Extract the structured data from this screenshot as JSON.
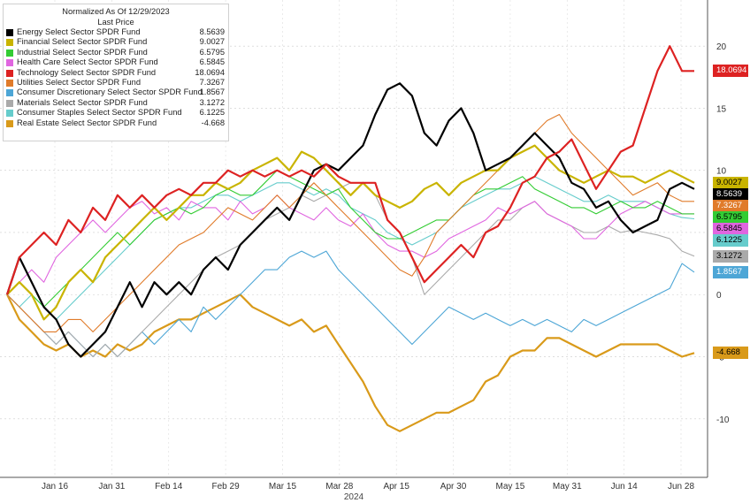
{
  "legend": {
    "title": "Normalized As Of 12/29/2023",
    "subtitle": "Last Price"
  },
  "chart_data": {
    "type": "line",
    "x_start": "2024-01-02",
    "x_end": "2024-06-28",
    "x_tick_labels": [
      "Jan 16",
      "Jan 31",
      "Feb 14",
      "Feb 29",
      "Mar 15",
      "Mar 28",
      "Apr 15",
      "Apr 30",
      "May 15",
      "May 31",
      "Jun 14",
      "Jun 28"
    ],
    "x_year_label": "2024",
    "y_tick_labels": [
      "20",
      "15",
      "10",
      "5",
      "0",
      "-5",
      "-10"
    ],
    "ylim": [
      -14,
      23
    ],
    "grid": true,
    "series": [
      {
        "name": "Energy Select Sector SPDR Fund",
        "last": "8.5639",
        "color": "#000000",
        "values": [
          0,
          3,
          1,
          -1,
          -2,
          -4,
          -5,
          -4,
          -3,
          -1,
          1,
          -1,
          1,
          0,
          1,
          0,
          2,
          3,
          2,
          4,
          5,
          6,
          7,
          6,
          8,
          10,
          10.5,
          10,
          11,
          12,
          14.5,
          16.5,
          17,
          16,
          13,
          12,
          14,
          15,
          13,
          10,
          10.5,
          11,
          12,
          13,
          12,
          11,
          9,
          8.5,
          7,
          7.5,
          6,
          5,
          5.5,
          6,
          8.5,
          9,
          8.5
        ]
      },
      {
        "name": "Financial Select Sector SPDR Fund",
        "last": "9.0027",
        "color": "#c9b400",
        "values": [
          0,
          1,
          0,
          -2,
          -1,
          1,
          2,
          1,
          3,
          4,
          5,
          6,
          7,
          6,
          7,
          8,
          8,
          9,
          8.5,
          9,
          10,
          10.5,
          11,
          10,
          11.5,
          11,
          10,
          9,
          8,
          9,
          8,
          7.5,
          7,
          7.5,
          8.5,
          9,
          8,
          9,
          9.5,
          10,
          10,
          11,
          11.5,
          12,
          11,
          10,
          9.5,
          9,
          9.5,
          10,
          9.5,
          9.5,
          9,
          9.5,
          10,
          9.5,
          9
        ]
      },
      {
        "name": "Industrial Select Sector SPDR Fund",
        "last": "6.5795",
        "color": "#33cc33",
        "values": [
          0,
          1,
          0,
          -1,
          0,
          1,
          2,
          3,
          4,
          5,
          4,
          5,
          6,
          6.5,
          7,
          6.5,
          7,
          8,
          8.5,
          8,
          8,
          9,
          10,
          9.5,
          9,
          8.5,
          8,
          8.5,
          7,
          6,
          5,
          4.5,
          4.5,
          5,
          5.5,
          6,
          6,
          7,
          8,
          8.5,
          8.5,
          9,
          9.5,
          8.5,
          8,
          7.5,
          7,
          7,
          6.5,
          7,
          7.5,
          7,
          7,
          7.5,
          7,
          6.5,
          6.5
        ]
      },
      {
        "name": "Health Care Select Sector SPDR Fund",
        "last": "6.5845",
        "color": "#e066e0",
        "values": [
          0,
          1,
          2,
          1,
          3,
          4,
          5,
          6,
          5,
          6,
          7,
          7.5,
          6.5,
          7,
          6,
          7.5,
          7,
          7,
          6,
          7.5,
          6.5,
          7,
          8,
          7,
          6.5,
          6,
          7,
          6,
          5.5,
          6.5,
          5,
          4,
          3.5,
          3.5,
          3,
          3.5,
          4.5,
          5,
          5.5,
          6,
          7,
          6.5,
          7,
          7.5,
          6.5,
          6,
          5.5,
          4.5,
          4.5,
          5.5,
          6.5,
          7,
          7.5,
          7,
          6.5,
          6.5,
          6.5
        ]
      },
      {
        "name": "Technology Select Sector SPDR Fund",
        "last": "18.0694",
        "color": "#dd2222",
        "values": [
          0,
          3,
          4,
          5,
          4,
          6,
          5,
          7,
          6,
          8,
          7,
          8,
          7,
          8,
          8.5,
          8,
          9,
          9,
          10,
          9.5,
          10,
          9.5,
          10,
          9.5,
          10,
          9.5,
          10.5,
          9.5,
          9,
          9,
          9,
          6,
          5,
          3,
          1,
          2,
          3,
          4,
          3,
          5,
          5.5,
          7,
          9,
          9.5,
          11,
          11.5,
          12.5,
          10.5,
          8.5,
          10,
          11.5,
          12,
          15,
          18,
          20,
          18,
          18
        ]
      },
      {
        "name": "Utilities Select Sector SPDR Fund",
        "last": "7.3267",
        "color": "#e07b2a",
        "values": [
          0,
          -1,
          -2,
          -3,
          -3,
          -2,
          -2,
          -3,
          -2,
          -1,
          0,
          1,
          2,
          3,
          4,
          4.5,
          5,
          6,
          7,
          6.5,
          6,
          7,
          8,
          7,
          8,
          9,
          8,
          7,
          6,
          5,
          4,
          3,
          2,
          1.5,
          3,
          5,
          6,
          7,
          8,
          9,
          10,
          11,
          12,
          13,
          14,
          14.5,
          13,
          12,
          11,
          10,
          9,
          8,
          8.5,
          9,
          8,
          7.5,
          7.5
        ]
      },
      {
        "name": "Consumer Discretionary Select Sector SPDR Fund",
        "last": "1.8567",
        "color": "#4da6d6",
        "values": [
          0,
          -1,
          -2,
          -3,
          -4,
          -3,
          -4,
          -5,
          -4,
          -5,
          -4,
          -3,
          -4,
          -3,
          -2,
          -3,
          -1,
          -2,
          -1,
          0,
          1,
          2,
          2,
          3,
          3.5,
          3,
          3.5,
          2,
          1,
          0,
          -1,
          -2,
          -3,
          -4,
          -3,
          -2,
          -1,
          -1.5,
          -2,
          -1.5,
          -2,
          -2.5,
          -2,
          -2.5,
          -2,
          -2.5,
          -3,
          -2,
          -2.5,
          -2,
          -1.5,
          -1,
          -0.5,
          0,
          0.5,
          2.5,
          1.8
        ]
      },
      {
        "name": "Materials Select Sector SPDR Fund",
        "last": "3.1272",
        "color": "#aaaaaa",
        "values": [
          0,
          -1,
          -2,
          -3,
          -4,
          -3,
          -4,
          -5,
          -4,
          -5,
          -4,
          -3,
          -2,
          -1,
          0,
          1,
          2,
          3,
          3.5,
          4,
          5,
          6,
          6.5,
          7,
          8,
          7.5,
          8,
          8.5,
          9,
          9,
          8,
          6,
          5,
          3,
          0,
          1,
          2,
          3,
          4,
          5,
          6,
          6,
          7,
          7.5,
          6.5,
          6,
          5.5,
          5,
          5,
          5.5,
          5,
          5.2,
          5,
          4.8,
          4.5,
          3.5,
          3.1
        ]
      },
      {
        "name": "Consumer Staples Select Sector SPDR Fund",
        "last": "6.1225",
        "color": "#66cccc",
        "values": [
          0,
          -1,
          0,
          -1,
          -2,
          -1,
          0,
          1,
          2,
          3,
          4,
          5,
          6,
          6.5,
          7,
          7,
          7.5,
          8,
          8,
          7.5,
          8,
          8.5,
          9,
          9,
          8.5,
          8,
          8.5,
          8,
          7,
          6.5,
          6,
          5,
          4.5,
          4,
          4.5,
          5,
          6,
          7,
          7.5,
          8,
          8.5,
          8.5,
          9,
          9.5,
          9,
          8.5,
          8,
          7.5,
          7.5,
          8,
          7.5,
          7.5,
          7.5,
          7,
          6.5,
          6.2,
          6.1
        ]
      },
      {
        "name": "Real Estate Select Sector SPDR Fund",
        "last": "-4.668",
        "color": "#d99a1a",
        "values": [
          0,
          -2,
          -3,
          -4,
          -4.5,
          -4,
          -5,
          -4.5,
          -5,
          -4,
          -4.5,
          -4,
          -3,
          -2.5,
          -2,
          -2,
          -1.5,
          -1,
          -0.5,
          0,
          -1,
          -1.5,
          -2,
          -2.5,
          -2,
          -3,
          -2.5,
          -4,
          -5.5,
          -7,
          -9,
          -10.5,
          -11,
          -10.5,
          -10,
          -9.5,
          -9.5,
          -9,
          -8.5,
          -7,
          -6.5,
          -5,
          -4.5,
          -4.5,
          -3.5,
          -3.5,
          -4,
          -4.5,
          -5,
          -4.5,
          -4,
          -4,
          -4,
          -4,
          -4.5,
          -5,
          -4.7
        ]
      }
    ]
  }
}
